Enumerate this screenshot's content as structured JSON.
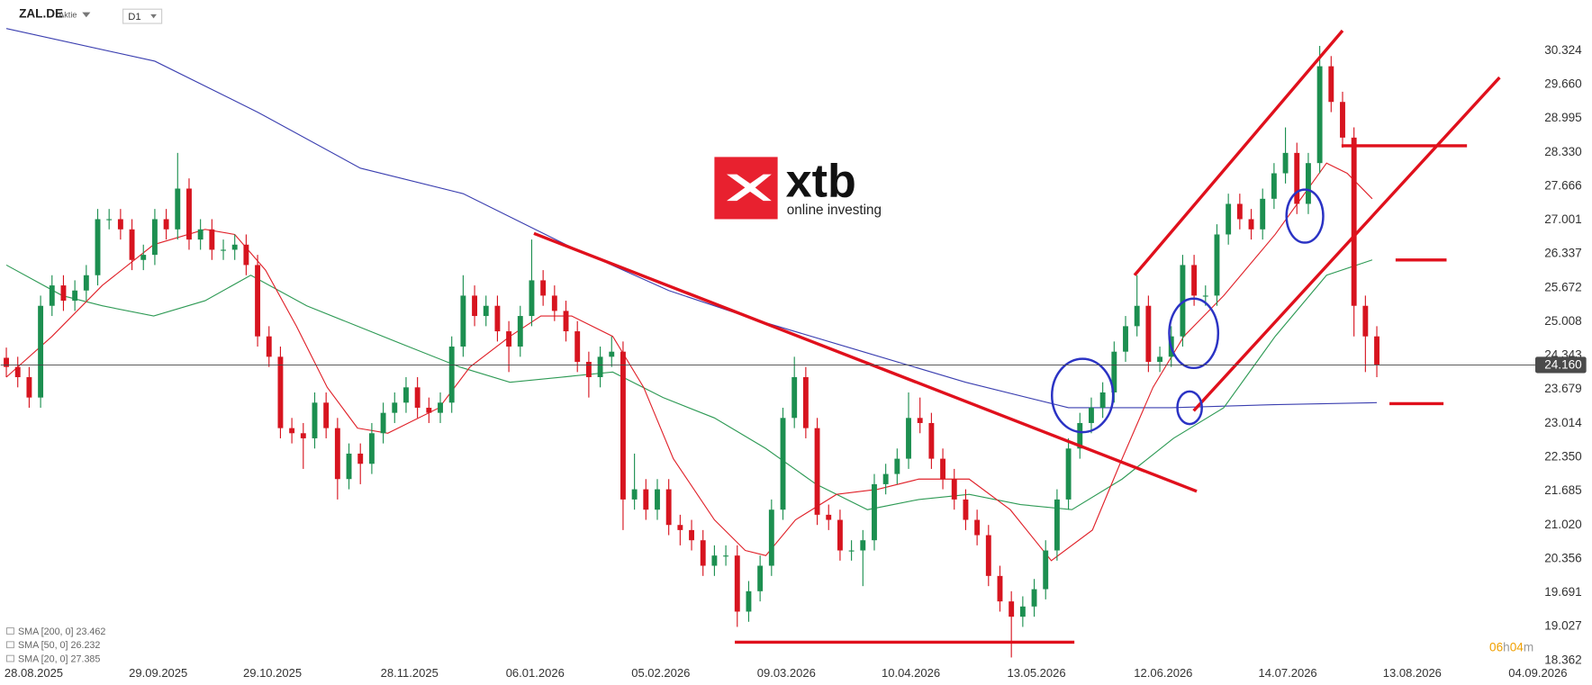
{
  "chart_data": {
    "type": "candlestick",
    "symbol": "ZAL.DE",
    "instrument_type": "Aktie",
    "timeframe": "D1",
    "xlim": [
      -0.5,
      135
    ],
    "ylim": [
      17.88,
      31.32
    ],
    "xticks": [
      {
        "value": 2.4,
        "label": "28.08.2025"
      },
      {
        "value": 13.3,
        "label": "29.09.2025"
      },
      {
        "value": 23.3,
        "label": "29.10.2025"
      },
      {
        "value": 35.3,
        "label": "28.11.2025"
      },
      {
        "value": 46.3,
        "label": "06.01.2026"
      },
      {
        "value": 57.3,
        "label": "05.02.2026"
      },
      {
        "value": 68.3,
        "label": "09.03.2026"
      },
      {
        "value": 79.2,
        "label": "10.04.2026"
      },
      {
        "value": 90.2,
        "label": "13.05.2026"
      },
      {
        "value": 101.3,
        "label": "12.06.2026"
      },
      {
        "value": 112.2,
        "label": "14.07.2026"
      },
      {
        "value": 123.1,
        "label": "13.08.2026"
      },
      {
        "value": 134.1,
        "label": "04.09.2026"
      }
    ],
    "yticks": [
      30.324,
      {
        "value": 29.66,
        "label": "29.660"
      },
      28.995,
      {
        "value": 28.33,
        "label": "28.330"
      },
      27.666,
      27.001,
      26.337,
      25.672,
      25.008,
      24.343,
      23.679,
      23.014,
      {
        "value": 22.35,
        "label": "22.350"
      },
      21.685,
      {
        "value": 21.02,
        "label": "21.020"
      },
      20.356,
      19.691,
      19.027,
      18.362
    ],
    "up_color": "#1c8f50",
    "down_color": "#d7141f",
    "open": [
      24.3,
      24.12,
      23.92,
      23.52,
      25.32,
      25.72,
      25.42,
      25.62,
      25.92,
      27.02,
      27.02,
      26.82,
      26.22,
      26.32,
      27.02,
      26.82,
      27.62,
      26.62,
      26.82,
      26.42,
      26.42,
      26.52,
      26.12,
      24.72,
      24.32,
      22.92,
      22.82,
      22.72,
      23.42,
      22.92,
      21.92,
      22.42,
      22.22,
      22.82,
      23.22,
      23.42,
      23.72,
      23.32,
      23.22,
      23.42,
      24.52,
      25.52,
      25.12,
      25.32,
      24.82,
      24.52,
      25.12,
      25.82,
      25.52,
      25.22,
      24.82,
      24.22,
      23.92,
      24.32,
      24.42,
      21.52,
      21.72,
      21.32,
      21.72,
      21.02,
      20.92,
      20.72,
      20.22,
      20.42,
      20.42,
      19.32,
      19.72,
      20.22,
      21.32,
      23.12,
      23.92,
      22.92,
      21.22,
      21.12,
      20.52,
      20.52,
      20.72,
      21.82,
      22.02,
      22.32,
      23.12,
      23.02,
      22.32,
      21.92,
      21.52,
      21.12,
      20.82,
      20.02,
      19.52,
      19.22,
      19.42,
      19.76,
      20.52,
      21.52,
      22.52,
      23.02,
      23.32,
      23.62,
      24.42,
      24.92,
      25.32,
      24.22,
      24.32,
      24.72,
      26.12,
      25.52,
      25.52,
      26.72,
      27.32,
      27.02,
      26.82,
      27.42,
      27.92,
      28.32,
      27.32,
      28.12,
      30.02,
      29.32,
      28.62,
      25.32,
      24.72
    ],
    "high": [
      24.5,
      24.32,
      24.12,
      25.52,
      25.92,
      25.92,
      25.82,
      26.12,
      27.22,
      27.22,
      27.22,
      27.02,
      26.52,
      27.22,
      27.22,
      28.32,
      27.82,
      27.02,
      27.02,
      26.62,
      26.72,
      26.72,
      26.32,
      24.92,
      24.52,
      23.12,
      23.02,
      23.62,
      23.62,
      23.12,
      22.62,
      22.62,
      23.02,
      23.42,
      23.62,
      23.92,
      23.92,
      23.52,
      23.62,
      24.72,
      25.92,
      25.72,
      25.52,
      25.52,
      25.02,
      25.32,
      26.62,
      26.02,
      25.72,
      25.42,
      25.02,
      24.42,
      24.52,
      24.72,
      24.62,
      22.42,
      21.92,
      21.92,
      21.92,
      21.22,
      21.12,
      20.92,
      20.62,
      20.62,
      20.62,
      19.92,
      20.42,
      21.52,
      23.32,
      24.32,
      24.12,
      23.12,
      21.42,
      21.32,
      20.72,
      20.92,
      22.02,
      22.22,
      22.52,
      23.62,
      23.52,
      23.22,
      22.52,
      22.12,
      21.72,
      21.32,
      21.02,
      20.22,
      19.72,
      19.62,
      19.96,
      20.72,
      21.72,
      22.72,
      23.22,
      23.52,
      23.82,
      24.62,
      25.12,
      25.92,
      25.52,
      24.52,
      24.92,
      26.32,
      26.32,
      25.72,
      26.92,
      27.52,
      27.52,
      27.22,
      27.62,
      28.12,
      28.82,
      28.52,
      28.32,
      30.42,
      30.22,
      29.52,
      28.82,
      25.52,
      24.92
    ],
    "low": [
      23.92,
      23.72,
      23.32,
      23.32,
      25.12,
      25.22,
      25.22,
      25.42,
      25.72,
      26.82,
      26.62,
      26.02,
      26.02,
      26.12,
      26.62,
      26.62,
      26.42,
      26.42,
      26.22,
      26.22,
      26.22,
      25.92,
      24.52,
      24.12,
      22.72,
      22.62,
      22.12,
      22.52,
      22.72,
      21.52,
      21.72,
      21.82,
      22.02,
      22.62,
      23.02,
      23.22,
      23.12,
      23.02,
      23.02,
      23.22,
      24.32,
      24.92,
      24.92,
      24.62,
      24.02,
      24.32,
      24.92,
      25.32,
      25.02,
      24.62,
      24.02,
      23.52,
      23.72,
      24.12,
      20.92,
      21.32,
      21.12,
      21.12,
      20.82,
      20.62,
      20.52,
      20.02,
      20.02,
      20.22,
      19.02,
      19.12,
      19.52,
      20.02,
      21.12,
      22.92,
      22.72,
      21.02,
      20.92,
      20.32,
      20.32,
      19.82,
      20.52,
      21.62,
      21.82,
      22.12,
      22.82,
      22.12,
      21.72,
      21.32,
      20.92,
      20.62,
      19.82,
      19.32,
      18.42,
      19.02,
      19.22,
      19.56,
      20.32,
      21.32,
      22.32,
      22.82,
      23.12,
      23.42,
      24.22,
      24.72,
      24.02,
      24.02,
      24.12,
      24.52,
      25.32,
      25.32,
      25.32,
      26.52,
      26.82,
      26.62,
      26.62,
      27.22,
      27.72,
      27.12,
      27.12,
      27.92,
      29.12,
      28.42,
      24.72,
      24.02,
      23.92
    ],
    "close": [
      24.12,
      23.92,
      23.52,
      25.32,
      25.72,
      25.42,
      25.62,
      25.92,
      27.02,
      27.02,
      26.82,
      26.22,
      26.32,
      27.02,
      26.82,
      27.62,
      26.62,
      26.82,
      26.42,
      26.42,
      26.52,
      26.12,
      24.72,
      24.32,
      22.92,
      22.82,
      22.72,
      23.42,
      22.92,
      21.92,
      22.42,
      22.22,
      22.82,
      23.22,
      23.42,
      23.72,
      23.32,
      23.22,
      23.42,
      24.52,
      25.52,
      25.12,
      25.32,
      24.82,
      24.52,
      25.12,
      25.82,
      25.52,
      25.22,
      24.82,
      24.22,
      23.92,
      24.32,
      24.42,
      21.52,
      21.72,
      21.32,
      21.72,
      21.02,
      20.92,
      20.72,
      20.22,
      20.42,
      20.42,
      19.32,
      19.72,
      20.22,
      21.32,
      23.12,
      23.92,
      22.92,
      21.22,
      21.12,
      20.52,
      20.52,
      20.72,
      21.82,
      22.02,
      22.32,
      23.12,
      23.02,
      22.32,
      21.92,
      21.52,
      21.12,
      20.82,
      20.02,
      19.52,
      19.22,
      19.42,
      19.76,
      20.52,
      21.52,
      22.52,
      23.02,
      23.32,
      23.62,
      24.42,
      24.92,
      25.32,
      24.22,
      24.32,
      24.72,
      26.12,
      25.52,
      25.52,
      26.72,
      27.32,
      27.02,
      26.82,
      27.42,
      27.92,
      28.32,
      27.32,
      28.12,
      30.02,
      29.32,
      28.62,
      25.32,
      24.72,
      24.16
    ],
    "series": [
      {
        "name": "SMA [200, 0] 23.462",
        "color": "#3b3fb0",
        "x": [
          0,
          13,
          22,
          31,
          40,
          49,
          58,
          66,
          75,
          84,
          93,
          102,
          111,
          120
        ],
        "values": [
          30.76,
          30.12,
          29.12,
          28.02,
          27.52,
          26.52,
          25.62,
          25.02,
          24.42,
          23.82,
          23.32,
          23.32,
          23.38,
          23.42
        ]
      },
      {
        "name": "SMA [50, 0] 26.232",
        "color": "#2e9a55",
        "x": [
          0,
          4.9,
          8.4,
          12.9,
          17.4,
          21.4,
          26.3,
          30.75,
          35.2,
          39.7,
          44.1,
          48.6,
          53.1,
          57.5,
          62,
          66.5,
          70.9,
          75.4,
          79.9,
          84.3,
          88.8,
          93.3,
          97.7,
          102.2,
          106.6,
          111.1,
          115.6,
          119.6
        ],
        "values": [
          26.12,
          25.52,
          25.32,
          25.12,
          25.42,
          25.92,
          25.32,
          24.92,
          24.52,
          24.12,
          23.82,
          23.92,
          24.02,
          23.52,
          23.12,
          22.52,
          21.82,
          21.32,
          21.52,
          21.62,
          21.42,
          21.32,
          21.92,
          22.72,
          23.32,
          24.72,
          25.92,
          26.22
        ]
      },
      {
        "name": "SMA [20, 0] 27.385",
        "color": "#e0222a",
        "x": [
          0,
          4,
          8.4,
          12.9,
          17.4,
          20,
          22.7,
          25.4,
          28.1,
          30.75,
          33.4,
          37.9,
          40.6,
          44.1,
          46.8,
          49.5,
          53.1,
          55.8,
          58.4,
          62,
          64.7,
          66.5,
          69.1,
          72.7,
          76.3,
          79.9,
          84.3,
          87.9,
          91.5,
          95.1,
          97.7,
          100.4,
          103.1,
          106.6,
          111.1,
          115.6,
          117.4,
          119.6
        ],
        "values": [
          23.92,
          24.72,
          25.72,
          26.52,
          26.82,
          26.72,
          26.02,
          24.92,
          23.72,
          22.92,
          22.82,
          23.32,
          24.12,
          24.72,
          25.12,
          25.12,
          24.72,
          23.72,
          22.32,
          21.12,
          20.52,
          20.42,
          21.12,
          21.62,
          21.72,
          21.92,
          21.92,
          21.32,
          20.32,
          20.92,
          22.32,
          23.72,
          24.72,
          25.52,
          26.72,
          28.12,
          27.92,
          27.42
        ]
      }
    ],
    "last_price": {
      "value": 24.16,
      "label": "24.160"
    },
    "timer": [
      "06",
      "h",
      "04",
      "m"
    ]
  },
  "logo": {
    "brand": "xtb",
    "tagline": "online investing"
  }
}
